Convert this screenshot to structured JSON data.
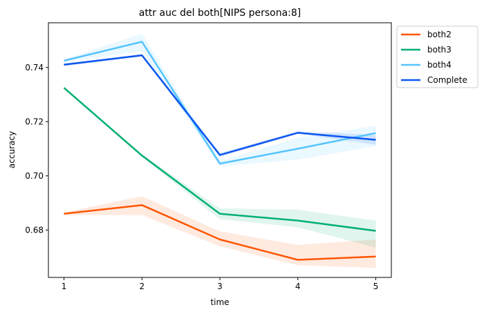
{
  "chart_data": {
    "type": "line",
    "title": "attr auc del both[NIPS persona:8]",
    "xlabel": "time",
    "ylabel": "accuracy",
    "x": [
      1,
      2,
      3,
      4,
      5
    ],
    "xticks": [
      "1",
      "2",
      "3",
      "4",
      "5"
    ],
    "yticks": [
      0.68,
      0.7,
      0.72,
      0.74
    ],
    "ytick_labels": [
      "0.68",
      "0.70",
      "0.72",
      "0.74"
    ],
    "xlim": [
      0.8,
      5.2
    ],
    "ylim": [
      0.6625,
      0.7565
    ],
    "grid": false,
    "legend_position": "outside top-right",
    "series": [
      {
        "name": "both2",
        "color": "#ff5500",
        "values": [
          0.686,
          0.6892,
          0.6765,
          0.669,
          0.6702
        ],
        "band_low": [
          0.6855,
          0.6855,
          0.674,
          0.667,
          0.666
        ],
        "band_high": [
          0.6865,
          0.6925,
          0.6795,
          0.6745,
          0.6765
        ]
      },
      {
        "name": "both3",
        "color": "#00b070",
        "values": [
          0.7325,
          0.7075,
          0.686,
          0.6835,
          0.6797
        ],
        "band_low": [
          0.732,
          0.707,
          0.684,
          0.681,
          0.6735
        ],
        "band_high": [
          0.733,
          0.708,
          0.688,
          0.6875,
          0.6835
        ]
      },
      {
        "name": "both4",
        "color": "#55c4ff",
        "values": [
          0.7425,
          0.7495,
          0.7045,
          0.71,
          0.7158
        ],
        "band_low": [
          0.742,
          0.746,
          0.7035,
          0.706,
          0.711
        ],
        "band_high": [
          0.743,
          0.7525,
          0.7055,
          0.714,
          0.7185
        ]
      },
      {
        "name": "Complete",
        "color": "#0a55f0",
        "values": [
          0.741,
          0.7445,
          0.7077,
          0.7159,
          0.7133
        ],
        "band_low": [
          0.7405,
          0.744,
          0.707,
          0.7155,
          0.7115
        ],
        "band_high": [
          0.7415,
          0.745,
          0.7085,
          0.7165,
          0.715
        ]
      }
    ]
  }
}
